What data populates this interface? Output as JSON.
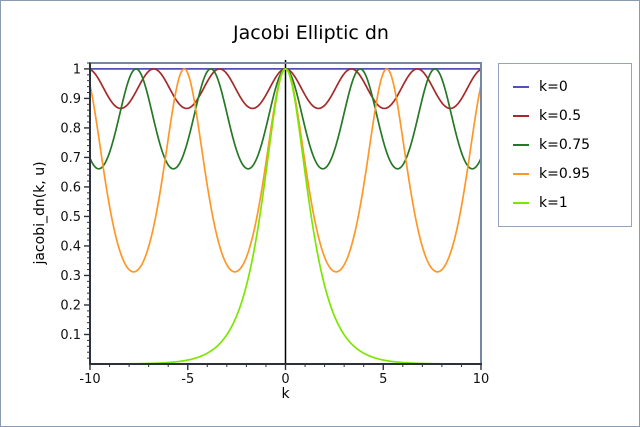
{
  "window": {
    "background": "#ffffff",
    "outer_border_color": "#8a9ab0"
  },
  "chart_data": {
    "type": "line",
    "title": "Jacobi Elliptic dn",
    "xlabel": "k",
    "ylabel": "jacobi_dn(k, u)",
    "xlim": [
      -10,
      10
    ],
    "ylim": [
      0,
      1.02
    ],
    "grid": false,
    "legend_position": "outside-right-top",
    "zero_axis_line": true,
    "function": "Jacobi elliptic dn(u, modulus k) sampled for u in [-10, 10]",
    "x_ticks": [
      {
        "v": -10,
        "label": "-10"
      },
      {
        "v": -5,
        "label": "-5"
      },
      {
        "v": 0,
        "label": "0"
      },
      {
        "v": 5,
        "label": "5"
      },
      {
        "v": 10,
        "label": "10"
      }
    ],
    "y_ticks": [
      {
        "v": 0.1,
        "label": "0.1"
      },
      {
        "v": 0.2,
        "label": "0.2"
      },
      {
        "v": 0.3,
        "label": "0.3"
      },
      {
        "v": 0.4,
        "label": "0.4"
      },
      {
        "v": 0.5,
        "label": "0.5"
      },
      {
        "v": 0.6,
        "label": "0.6"
      },
      {
        "v": 0.7,
        "label": "0.7"
      },
      {
        "v": 0.8,
        "label": "0.8"
      },
      {
        "v": 0.9,
        "label": "0.9"
      },
      {
        "v": 1,
        "label": "1"
      }
    ],
    "x_minor_tick_step": 1,
    "y_minor_tick_step": 0.02,
    "series": [
      {
        "label": "k=0",
        "k": 0,
        "color": "#5151b5",
        "max": 1,
        "min": 1,
        "shape": "constant dn=1"
      },
      {
        "label": "k=0.5",
        "k": 0.5,
        "color": "#a52a2a",
        "max": 1,
        "min": 0.866,
        "period": 3.372
      },
      {
        "label": "k=0.75",
        "k": 0.75,
        "color": "#267826",
        "max": 1,
        "min": 0.661,
        "period": 3.822
      },
      {
        "label": "k=0.95",
        "k": 0.95,
        "color": "#ff9728",
        "max": 1,
        "min": 0.312,
        "period": 5.18
      },
      {
        "label": "k=1",
        "k": 1,
        "color": "#7ce600",
        "max": 1,
        "min": 0.0001,
        "shape": "sech(u) decay"
      }
    ],
    "axis_colors": {
      "left_bottom_axis": "#2b313b",
      "top_right_frame": "#7487a6",
      "zero_line": "#000000",
      "tick_text": "#111111"
    }
  }
}
